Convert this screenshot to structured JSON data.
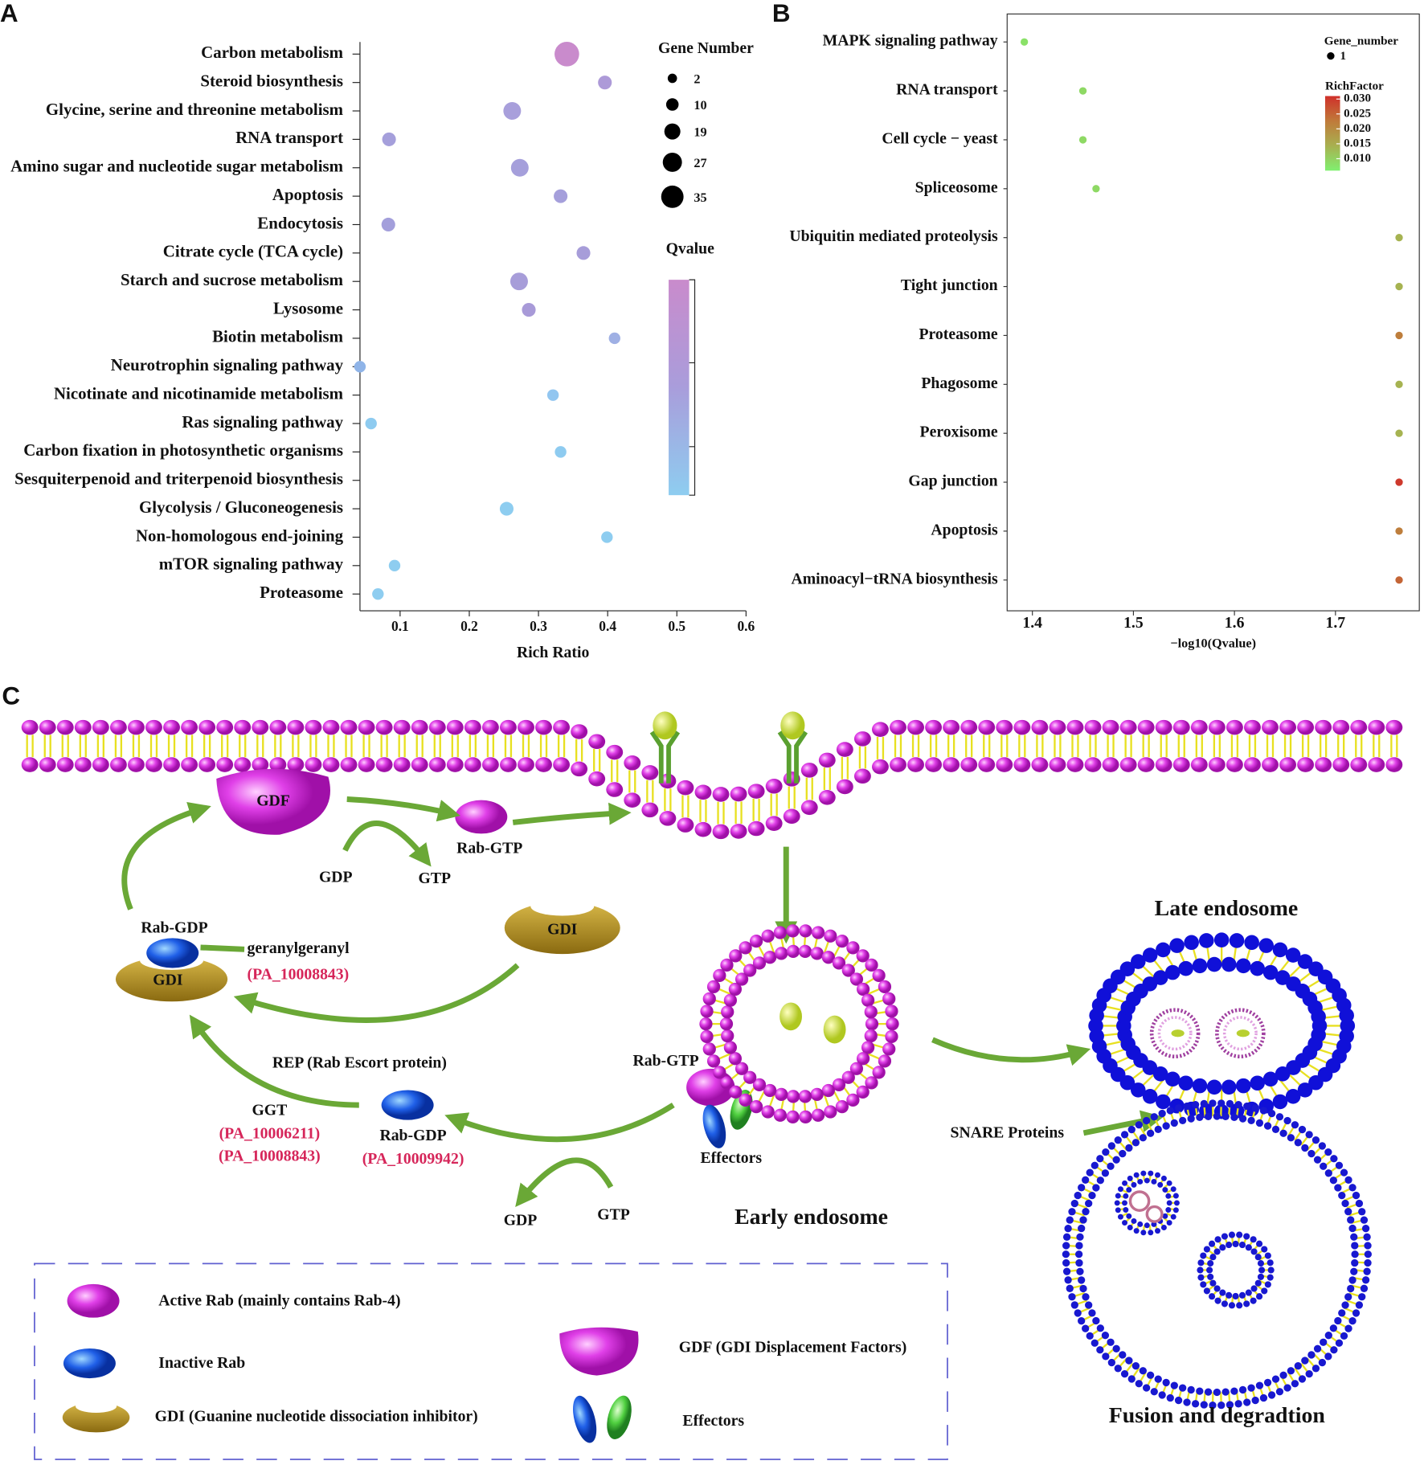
{
  "panels": {
    "a": "A",
    "b": "B",
    "c": "C"
  },
  "chart_data": [
    {
      "type": "scatter",
      "x_label": "Rich Ratio",
      "size_title": "Gene Number",
      "color_title": "Qvalue",
      "categories": [
        "Carbon metabolism",
        "Steroid biosynthesis",
        "Glycine, serine and threonine metabolism",
        "RNA transport",
        "Amino sugar and nucleotide sugar metabolism",
        "Apoptosis",
        "Endocytosis",
        "Citrate cycle (TCA cycle)",
        "Starch and sucrose metabolism",
        "Lysosome",
        "Biotin metabolism",
        "Neurotrophin signaling pathway",
        "Nicotinate and nicotinamide metabolism",
        "Ras signaling pathway",
        "Carbon fixation in photosynthetic organisms",
        "Sesquiterpenoid and triterpenoid biosynthesis",
        "Glycolysis / Gluconeogenesis",
        "Non-homologous end-joining",
        "mTOR signaling pathway",
        "Proteasome"
      ],
      "values": [
        0.341,
        0.396,
        0.262,
        0.084,
        0.273,
        0.332,
        0.083,
        0.365,
        0.272,
        0.286,
        0.41,
        0.042,
        0.321,
        0.058,
        0.332,
        null,
        0.254,
        0.399,
        0.092,
        0.068
      ],
      "sizes": [
        35,
        10,
        19,
        10,
        19,
        10,
        10,
        10,
        19,
        10,
        5,
        5,
        5,
        5,
        5,
        null,
        10,
        5,
        5,
        5
      ],
      "colors": [
        "#c98bcc",
        "#ad9ad8",
        "#a89fdb",
        "#a59fdb",
        "#a59fdb",
        "#a59fdb",
        "#a39fdb",
        "#a79dd9",
        "#a79dd9",
        "#a89ad8",
        "#9fb0e4",
        "#8fb4e8",
        "#92c6f0",
        "#8ecbf0",
        "#8ecbf0",
        null,
        "#8ecdf0",
        "#8ecdf0",
        "#8ecdf0",
        "#8ecdf0"
      ],
      "size_ticks": [
        2,
        10,
        19,
        27,
        35
      ],
      "colorbar": [
        "#c98bcc",
        "#a99ddb",
        "#8ecdf0"
      ],
      "xlim": [
        0.042,
        0.6
      ],
      "xticks": [
        0.1,
        0.2,
        0.3,
        0.4,
        0.5,
        0.6
      ]
    },
    {
      "type": "scatter",
      "x_label": "−log10(Qvalue)",
      "size_title": "Gene_number",
      "color_title": "RichFactor",
      "categories": [
        "MAPK signaling pathway",
        "RNA transport",
        "Cell cycle − yeast",
        "Spliceosome",
        "Ubiquitin mediated proteolysis",
        "Tight junction",
        "Proteasome",
        "Phagosome",
        "Peroxisome",
        "Gap junction",
        "Apoptosis",
        "Aminoacyl−tRNA biosynthesis"
      ],
      "values": [
        1.392,
        1.45,
        1.45,
        1.463,
        1.763,
        1.763,
        1.763,
        1.763,
        1.763,
        1.763,
        1.763,
        1.763
      ],
      "sizes": [
        1,
        1,
        1,
        1,
        1,
        1,
        1,
        1,
        1,
        1,
        1,
        1
      ],
      "rich_factor": [
        0.008,
        0.009,
        0.009,
        0.009,
        0.014,
        0.014,
        0.022,
        0.014,
        0.014,
        0.03,
        0.022,
        0.025
      ],
      "size_ticks": [
        1
      ],
      "clim": [
        0.006,
        0.031
      ],
      "cticks": [
        {
          "value": 0.03,
          "label": "0.030"
        },
        0.025,
        {
          "value": 0.02,
          "label": "0.020"
        },
        0.015,
        {
          "value": 0.01,
          "label": "0.010"
        }
      ],
      "colorbar": [
        "#80f070",
        "#a8b050",
        "#c07a3a",
        "#d0302a"
      ],
      "xlim": [
        1.375,
        1.783
      ],
      "xticks": [
        1.4,
        1.5,
        1.6,
        1.7
      ]
    }
  ],
  "diagram": {
    "gdf": "GDF",
    "rab_gtp_top": "Rab-GTP",
    "gdp_top": "GDP",
    "gtp_top": "GTP",
    "gdi_right": "GDI",
    "rab_gdp_left": "Rab-GDP",
    "gdi_left": "GDI",
    "geranylgeranyl": "geranylgeranyl",
    "pa_gg": "(PA_10008843)",
    "rep": "REP (Rab  Escort protein)",
    "ggt": "GGT",
    "pa_ggt1": "(PA_10006211)",
    "pa_ggt2": "(PA_10008843)",
    "rab_gdp_mid": "Rab-GDP",
    "pa_rab": "(PA_10009942)",
    "rab_gtp_early": "Rab-GTP",
    "effectors": "Effectors",
    "gdp_bottom": "GDP",
    "gtp_bottom": "GTP",
    "early": "Early endosome",
    "late": "Late endosome",
    "snare": "SNARE Proteins",
    "fusion": "Fusion and degradtion",
    "legend": [
      "Active Rab (mainly contains Rab-4)",
      "Inactive Rab",
      "GDI (Guanine nucleotide dissociation inhibitor)",
      "GDF (GDI Displacement Factors)",
      "Effectors"
    ]
  }
}
